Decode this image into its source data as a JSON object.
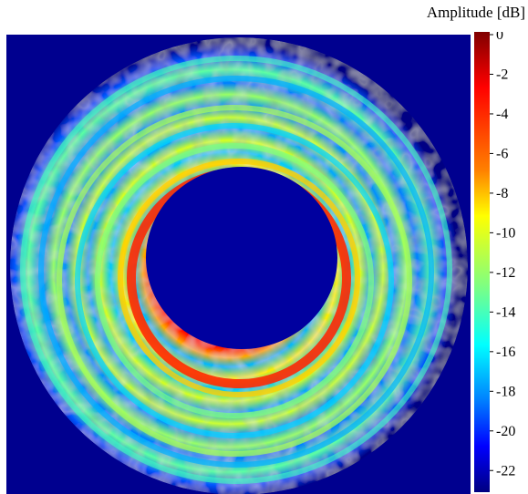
{
  "chart_data": {
    "type": "heatmap",
    "title": "",
    "colorbar": {
      "label": "Amplitude [dB]",
      "range": [
        -23,
        0
      ],
      "ticks": [
        0,
        -2,
        -4,
        -6,
        -8,
        -10,
        -12,
        -14,
        -16,
        -18,
        -20,
        -22
      ],
      "tick_labels": [
        "0",
        "-2",
        "-4",
        "-6",
        "-8",
        "-10",
        "-12",
        "-14",
        "-16",
        "-18",
        "-20",
        "-22"
      ],
      "colormap": "jet"
    },
    "field": {
      "shape": "circular aperture",
      "background_dB": -23,
      "dark_center_dB": -22,
      "peak_ring_dB": -1,
      "outer_rings_dB": [
        -11,
        -13,
        -14,
        -15,
        -16,
        -17,
        -18
      ]
    }
  }
}
